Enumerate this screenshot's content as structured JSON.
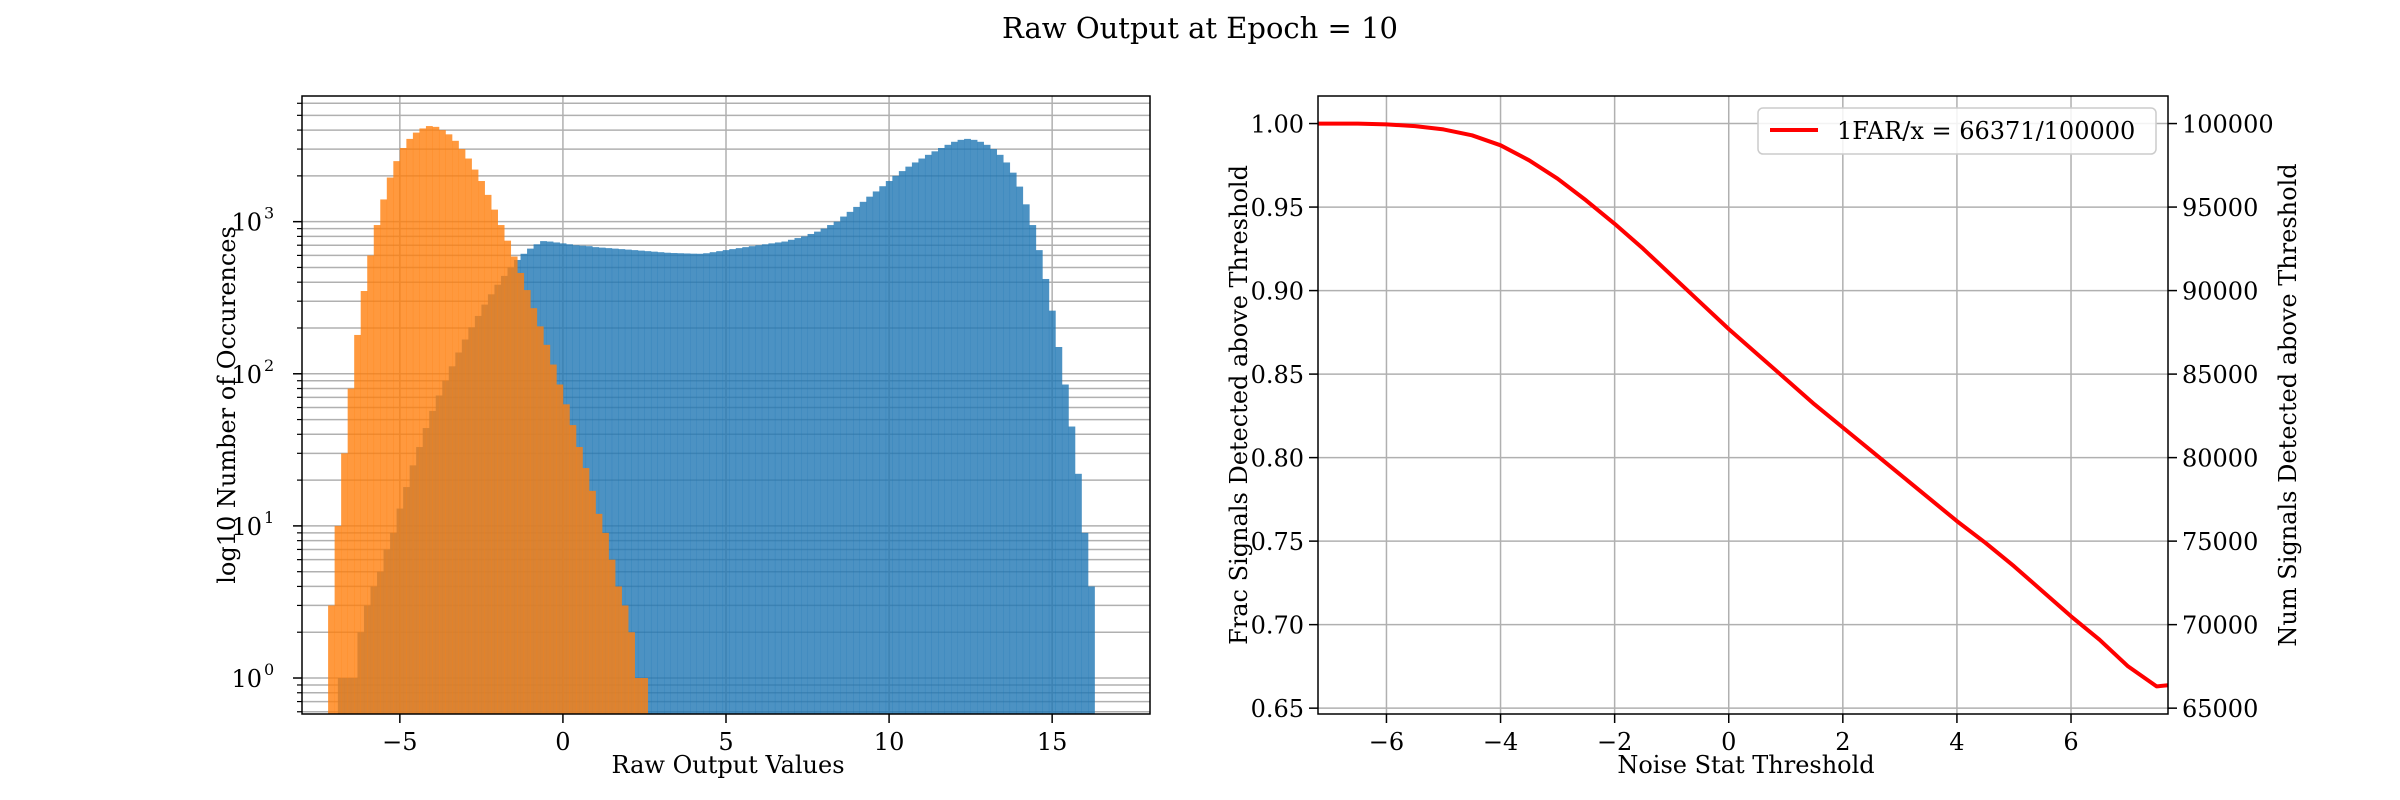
{
  "figure": {
    "title": "Raw Output at Epoch = 10"
  },
  "chart_data": [
    {
      "type": "histogram",
      "xlabel": "Raw Output Values",
      "ylabel": "log10 Number of Occurences",
      "xlim": [
        -8,
        18
      ],
      "ylim": [
        0.58,
        6700
      ],
      "yscale": "log",
      "grid": true,
      "xticks": [
        -5,
        0,
        5,
        10,
        15
      ],
      "xtick_labels": [
        "−5",
        "0",
        "5",
        "10",
        "15"
      ],
      "yticks": [
        1,
        10,
        100,
        1000
      ],
      "ytick_labels": [
        "10",
        "10",
        "10",
        "10"
      ],
      "ytick_exponents": [
        "0",
        "1",
        "2",
        "3"
      ],
      "bin_width": 0.2,
      "series": [
        {
          "color": "#1f77b4",
          "alpha": 0.8,
          "x_start": -6.9,
          "counts": [
            1,
            1,
            1,
            2,
            3,
            4,
            5,
            7,
            9,
            13,
            18,
            25,
            33,
            44,
            57,
            72,
            90,
            112,
            138,
            168,
            202,
            240,
            285,
            333,
            385,
            440,
            500,
            560,
            615,
            665,
            710,
            745,
            740,
            730,
            720,
            710,
            700,
            695,
            690,
            680,
            675,
            670,
            665,
            660,
            655,
            650,
            645,
            640,
            635,
            630,
            625,
            622,
            620,
            618,
            616,
            615,
            620,
            630,
            640,
            650,
            660,
            670,
            680,
            690,
            700,
            710,
            720,
            730,
            740,
            760,
            780,
            800,
            830,
            860,
            900,
            950,
            1000,
            1080,
            1160,
            1250,
            1350,
            1460,
            1580,
            1710,
            1850,
            2000,
            2150,
            2300,
            2450,
            2600,
            2750,
            2900,
            3050,
            3200,
            3350,
            3450,
            3500,
            3450,
            3350,
            3200,
            3000,
            2750,
            2450,
            2100,
            1700,
            1300,
            950,
            650,
            420,
            260,
            150,
            85,
            45,
            22,
            9,
            4
          ]
        },
        {
          "color": "#ff7f0e",
          "alpha": 0.8,
          "x_start": -7.2,
          "counts": [
            3,
            10,
            30,
            80,
            180,
            350,
            600,
            950,
            1400,
            1950,
            2500,
            3050,
            3500,
            3850,
            4100,
            4250,
            4200,
            4000,
            3750,
            3400,
            3000,
            2600,
            2200,
            1850,
            1500,
            1200,
            950,
            750,
            590,
            460,
            355,
            270,
            205,
            155,
            115,
            85,
            63,
            46,
            33,
            24,
            17,
            12,
            9,
            6,
            4,
            3,
            2,
            1,
            1
          ]
        }
      ]
    },
    {
      "type": "line",
      "xlabel": "Noise Stat Threshold",
      "ylabel": "Frac Signals Detected above Threshold",
      "ylabel_right": "Num Signals Detected above Threshold",
      "xlim": [
        -7.2,
        7.7
      ],
      "ylim": [
        0.6465,
        1.0165
      ],
      "ylim_right": [
        64650,
        101650
      ],
      "grid": true,
      "xticks": [
        -6,
        -4,
        -2,
        0,
        2,
        4,
        6
      ],
      "xtick_labels": [
        "−6",
        "−4",
        "−2",
        "0",
        "2",
        "4",
        "6"
      ],
      "yticks": [
        0.65,
        0.7,
        0.75,
        0.8,
        0.85,
        0.9,
        0.95,
        1.0
      ],
      "ytick_labels": [
        "0.65",
        "0.70",
        "0.75",
        "0.80",
        "0.85",
        "0.90",
        "0.95",
        "1.00"
      ],
      "yticks_right": [
        65000,
        70000,
        75000,
        80000,
        85000,
        90000,
        95000,
        100000
      ],
      "ytick_labels_right": [
        "65000",
        "70000",
        "75000",
        "80000",
        "85000",
        "90000",
        "95000",
        "100000"
      ],
      "legend_position": "top-right",
      "series": [
        {
          "name": "1FAR/x = 66371/100000",
          "color": "#ff0000",
          "x": [
            -7.2,
            -6.5,
            -6.0,
            -5.5,
            -5.0,
            -4.5,
            -4.0,
            -3.5,
            -3.0,
            -2.5,
            -2.0,
            -1.5,
            -1.0,
            -0.5,
            0.0,
            0.5,
            1.0,
            1.5,
            2.0,
            2.5,
            3.0,
            3.5,
            4.0,
            4.5,
            5.0,
            5.5,
            6.0,
            6.5,
            7.0,
            7.5,
            7.7
          ],
          "y": [
            1.0,
            1.0,
            0.9995,
            0.9985,
            0.9965,
            0.993,
            0.987,
            0.978,
            0.967,
            0.954,
            0.94,
            0.925,
            0.909,
            0.893,
            0.877,
            0.862,
            0.847,
            0.832,
            0.818,
            0.804,
            0.79,
            0.776,
            0.762,
            0.749,
            0.735,
            0.72,
            0.705,
            0.691,
            0.675,
            0.663,
            0.6637
          ]
        }
      ]
    }
  ]
}
